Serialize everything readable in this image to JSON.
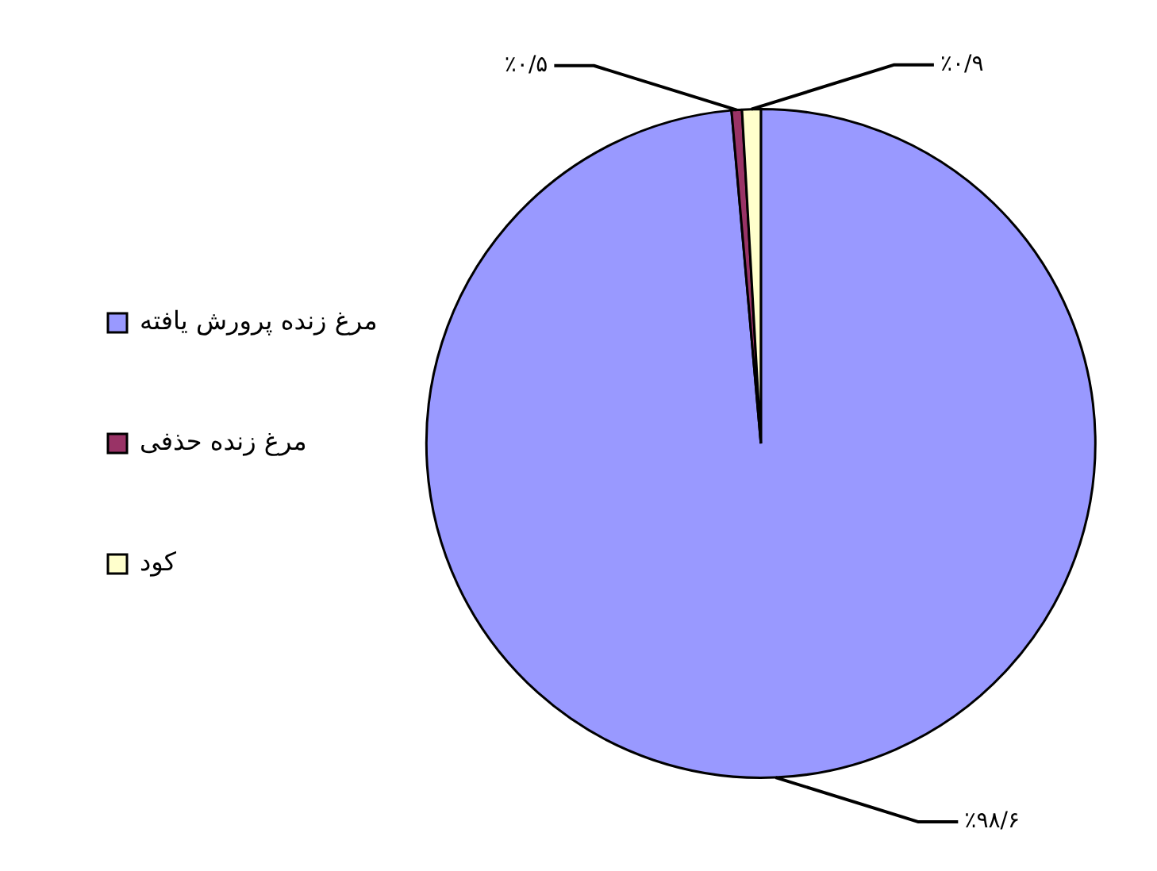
{
  "chart_data": {
    "type": "pie",
    "categories": [
      "مرغ زنده پرورش یافته",
      "مرغ زنده حذفی",
      "کود"
    ],
    "values": [
      98.6,
      0.5,
      0.9
    ],
    "colors": [
      "#9999ff",
      "#993366",
      "#ffffcc"
    ],
    "value_labels": [
      "٪۹۸/۶",
      "٪۰/۵",
      "٪۰/۹"
    ],
    "legend": "left"
  }
}
